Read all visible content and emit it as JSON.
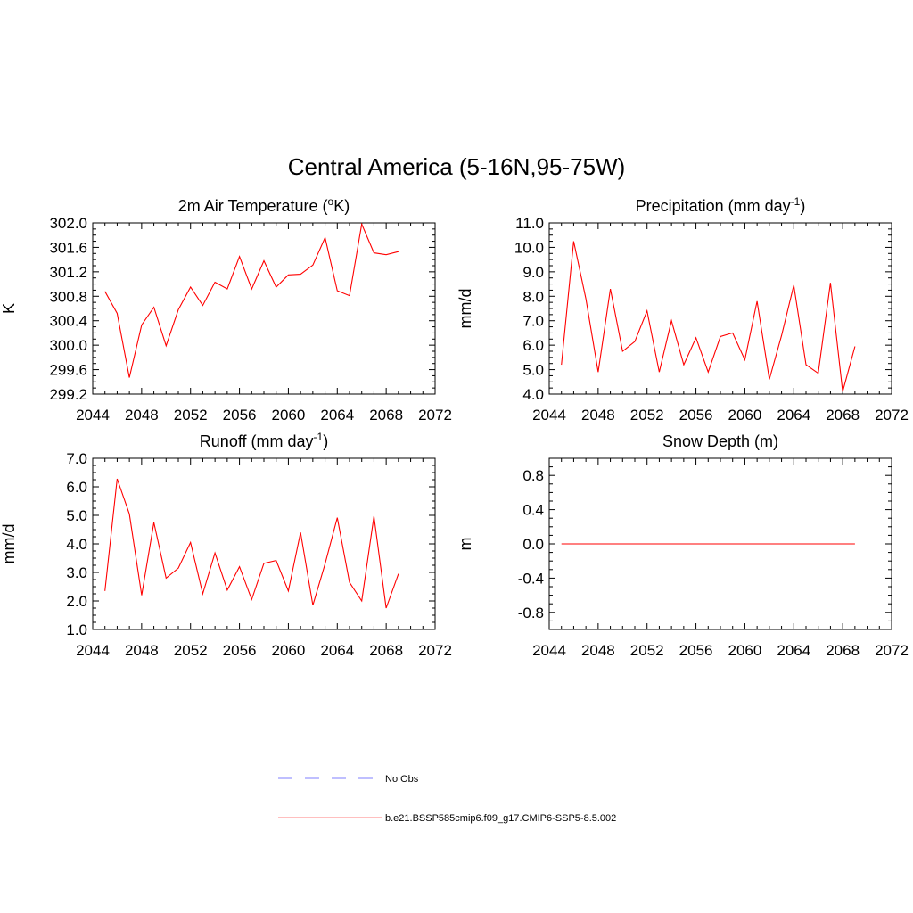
{
  "title": "Central America (5-16N,95-75W)",
  "legend": {
    "items": [
      {
        "label": "No Obs",
        "color": "#9999ff",
        "style": "dashed"
      },
      {
        "label": "b.e21.BSSP585cmip6.f09_g17.CMIP6-SSP5-8.5.002",
        "color": "#ff9999",
        "style": "solid"
      }
    ]
  },
  "chart_data": [
    {
      "type": "line",
      "title": "2m Air Temperature (",
      "title_sup": "o",
      "title_after": "K)",
      "ylabel": "K",
      "xlim": [
        2044,
        2072
      ],
      "ylim": [
        299.2,
        302.0
      ],
      "xticks": [
        "2044",
        "2048",
        "2052",
        "2056",
        "2060",
        "2064",
        "2068",
        "2072"
      ],
      "yticks": [
        "299.2",
        "299.6",
        "300.0",
        "300.4",
        "300.8",
        "301.2",
        "301.6",
        "302.0"
      ],
      "color": "#ff0000",
      "x": [
        2045,
        2046,
        2047,
        2048,
        2049,
        2050,
        2051,
        2052,
        2053,
        2054,
        2055,
        2056,
        2057,
        2058,
        2059,
        2060,
        2061,
        2062,
        2063,
        2064,
        2065,
        2066,
        2067,
        2068,
        2069
      ],
      "values": [
        300.88,
        300.52,
        299.47,
        300.33,
        300.62,
        299.99,
        300.58,
        300.95,
        300.65,
        301.03,
        300.92,
        301.45,
        300.92,
        301.38,
        300.95,
        301.15,
        301.16,
        301.31,
        301.76,
        300.89,
        300.81,
        301.98,
        301.51,
        301.48,
        301.53
      ]
    },
    {
      "type": "line",
      "title": "Precipitation (mm day",
      "title_sup": "-1",
      "title_after": ")",
      "ylabel": "mm/d",
      "xlim": [
        2044,
        2072
      ],
      "ylim": [
        4.0,
        11.0
      ],
      "xticks": [
        "2044",
        "2048",
        "2052",
        "2056",
        "2060",
        "2064",
        "2068",
        "2072"
      ],
      "yticks": [
        "4.0",
        "5.0",
        "6.0",
        "7.0",
        "8.0",
        "9.0",
        "10.0",
        "11.0"
      ],
      "color": "#ff0000",
      "x": [
        2045,
        2046,
        2047,
        2048,
        2049,
        2050,
        2051,
        2052,
        2053,
        2054,
        2055,
        2056,
        2057,
        2058,
        2059,
        2060,
        2061,
        2062,
        2063,
        2064,
        2065,
        2066,
        2067,
        2068,
        2069
      ],
      "values": [
        5.2,
        10.25,
        7.9,
        4.9,
        8.3,
        5.75,
        6.15,
        7.4,
        4.9,
        7.0,
        5.2,
        6.3,
        4.9,
        6.35,
        6.5,
        5.4,
        7.8,
        4.6,
        6.4,
        8.45,
        5.2,
        4.85,
        8.55,
        4.1,
        5.95
      ]
    },
    {
      "type": "line",
      "title": "Runoff (mm day",
      "title_sup": "-1",
      "title_after": ")",
      "ylabel": "mm/d",
      "xlim": [
        2044,
        2072
      ],
      "ylim": [
        1.0,
        7.0
      ],
      "xticks": [
        "2044",
        "2048",
        "2052",
        "2056",
        "2060",
        "2064",
        "2068",
        "2072"
      ],
      "yticks": [
        "1.0",
        "2.0",
        "3.0",
        "4.0",
        "5.0",
        "6.0",
        "7.0"
      ],
      "color": "#ff0000",
      "x": [
        2045,
        2046,
        2047,
        2048,
        2049,
        2050,
        2051,
        2052,
        2053,
        2054,
        2055,
        2056,
        2057,
        2058,
        2059,
        2060,
        2061,
        2062,
        2063,
        2064,
        2065,
        2066,
        2067,
        2068,
        2069
      ],
      "values": [
        2.35,
        6.28,
        5.05,
        2.2,
        4.75,
        2.8,
        3.15,
        4.05,
        2.25,
        3.68,
        2.38,
        3.2,
        2.05,
        3.32,
        3.42,
        2.35,
        4.4,
        1.85,
        3.3,
        4.92,
        2.65,
        2.0,
        4.97,
        1.75,
        2.95
      ]
    },
    {
      "type": "line",
      "title": "Snow Depth (m)",
      "title_sup": "",
      "title_after": "",
      "ylabel": "m",
      "xlim": [
        2044,
        2072
      ],
      "ylim": [
        -1.0,
        1.0
      ],
      "xticks": [
        "2044",
        "2048",
        "2052",
        "2056",
        "2060",
        "2064",
        "2068",
        "2072"
      ],
      "yticks": [
        "-0.8",
        "-0.4",
        "0.0",
        "0.4",
        "0.8"
      ],
      "ytick_values": [
        -0.8,
        -0.4,
        0.0,
        0.4,
        0.8
      ],
      "color": "#ff0000",
      "x": [
        2045,
        2046,
        2047,
        2048,
        2049,
        2050,
        2051,
        2052,
        2053,
        2054,
        2055,
        2056,
        2057,
        2058,
        2059,
        2060,
        2061,
        2062,
        2063,
        2064,
        2065,
        2066,
        2067,
        2068,
        2069
      ],
      "values": [
        0,
        0,
        0,
        0,
        0,
        0,
        0,
        0,
        0,
        0,
        0,
        0,
        0,
        0,
        0,
        0,
        0,
        0,
        0,
        0,
        0,
        0,
        0,
        0,
        0
      ]
    }
  ]
}
